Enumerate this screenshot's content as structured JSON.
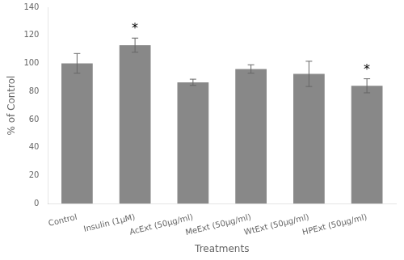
{
  "chart_data": {
    "type": "bar",
    "categories": [
      "Control",
      "Insulin (1μM)",
      "AcExt (50μg/ml)",
      "MeExt (50μg/ml)",
      "WtExt (50μg/ml)",
      "HPExt (50μg/ml)"
    ],
    "values": [
      100.0,
      113.0,
      86.5,
      96.0,
      92.5,
      84.0
    ],
    "errors": [
      7.0,
      5.0,
      2.2,
      3.0,
      9.0,
      5.0
    ],
    "color": "#888888",
    "xlabel": "Treatments",
    "ylabel": "% of Control",
    "ylim": [
      0,
      140
    ],
    "yticks": [
      0,
      20,
      40,
      60,
      80,
      100,
      120,
      140
    ],
    "grid": false,
    "annotations": [
      {
        "text": "*",
        "category": "Insulin (1μM)"
      },
      {
        "text": "*",
        "category": "HPExt (50μg/ml)"
      }
    ]
  }
}
